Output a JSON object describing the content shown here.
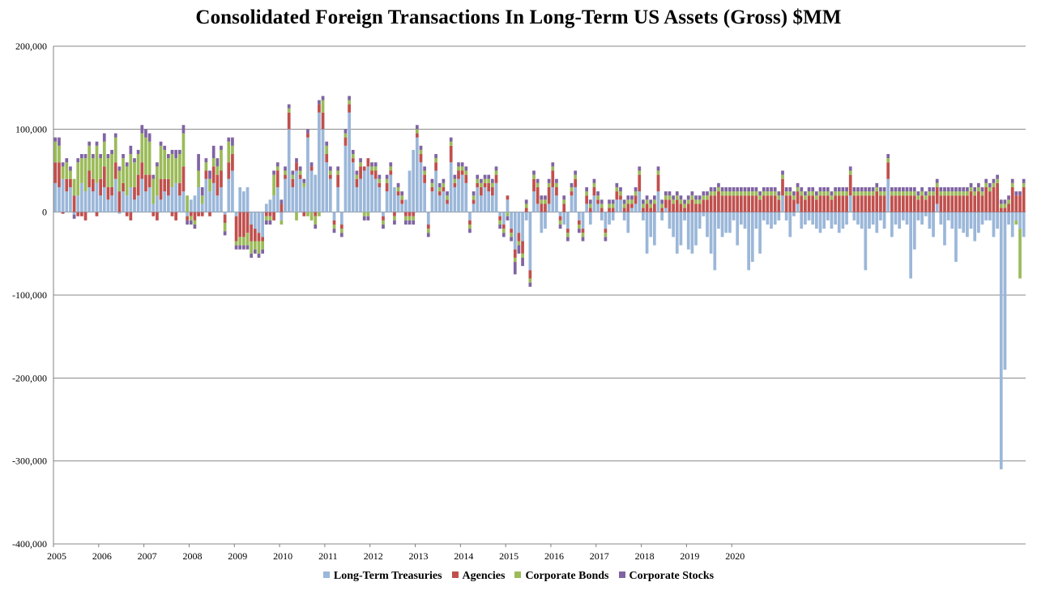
{
  "chart_data": {
    "type": "bar",
    "stacked": true,
    "title": "Consolidated Foreign Transactions In Long-Term US Assets (Gross) $MM",
    "ylim": [
      -400000,
      200000
    ],
    "yticks": [
      "200,000",
      "100,000",
      "0",
      "-100,000",
      "-200,000",
      "-300,000",
      "-400,000"
    ],
    "ytick_values": [
      200000,
      100000,
      0,
      -100000,
      -200000,
      -300000,
      -400000
    ],
    "xticks": [
      "2005",
      "2006",
      "2007",
      "2008",
      "2009",
      "2010",
      "2011",
      "2012",
      "2013",
      "2014",
      "2015",
      "2016",
      "2017",
      "2018",
      "2019",
      "2020"
    ],
    "grid": true,
    "legend_position": "bottom",
    "series": [
      {
        "name": "Long-Term Treasuries",
        "color": "#9bb7d9",
        "values": [
          35000,
          30000,
          40000,
          25000,
          30000,
          -3000,
          20000,
          35000,
          25000,
          30000,
          25000,
          35000,
          20000,
          30000,
          15000,
          20000,
          40000,
          -2000,
          25000,
          20000,
          30000,
          15000,
          20000,
          40000,
          25000,
          30000,
          10000,
          20000,
          15000,
          25000,
          20000,
          30000,
          35000,
          20000,
          25000,
          -5000,
          15000,
          20000,
          30000,
          10000,
          40000,
          25000,
          35000,
          20000,
          30000,
          -3000,
          40000,
          50000,
          -5000,
          30000,
          25000,
          30000,
          -15000,
          -20000,
          -25000,
          -30000,
          10000,
          15000,
          20000,
          30000,
          -10000,
          40000,
          100000,
          30000,
          50000,
          40000,
          30000,
          90000,
          50000,
          45000,
          120000,
          100000,
          60000,
          40000,
          -10000,
          30000,
          -15000,
          80000,
          120000,
          60000,
          30000,
          40000,
          50000,
          55000,
          45000,
          40000,
          30000,
          -5000,
          25000,
          45000,
          30000,
          20000,
          10000,
          15000,
          50000,
          75000,
          90000,
          60000,
          35000,
          -15000,
          25000,
          50000,
          20000,
          25000,
          10000,
          60000,
          30000,
          40000,
          45000,
          35000,
          -10000,
          10000,
          30000,
          20000,
          30000,
          25000,
          20000,
          35000,
          -5000,
          -15000,
          15000,
          -20000,
          -45000,
          -25000,
          -35000,
          -10000,
          -70000,
          25000,
          10000,
          -25000,
          -20000,
          10000,
          30000,
          20000,
          -5000,
          -15000,
          -20000,
          20000,
          30000,
          -10000,
          -20000,
          10000,
          -15000,
          20000,
          10000,
          -10000,
          -20000,
          -15000,
          -10000,
          15000,
          15000,
          -10000,
          -25000,
          5000,
          10000,
          25000,
          -10000,
          -50000,
          -30000,
          -40000,
          25000,
          -10000,
          5000,
          -20000,
          -30000,
          -50000,
          -40000,
          -10000,
          -45000,
          -50000,
          -40000,
          -20000,
          -5000,
          -30000,
          -50000,
          -70000,
          -20000,
          -30000,
          -25000,
          -25000,
          -10000,
          -40000,
          -15000,
          -20000,
          -70000,
          -60000,
          -20000,
          -50000,
          -10000,
          -15000,
          -20000,
          -15000,
          -10000,
          20000,
          -10000,
          -30000,
          -5000,
          10000,
          -20000,
          -15000,
          -10000,
          -15000,
          -20000,
          -25000,
          -20000,
          -10000,
          -20000,
          -15000,
          -25000,
          -20000,
          -15000,
          20000,
          -10000,
          -15000,
          -20000,
          -70000,
          -20000,
          -15000,
          -25000,
          -10000,
          -20000,
          40000,
          -30000,
          -15000,
          -20000,
          -10000,
          -15000,
          -80000,
          -45000,
          -10000,
          -15000,
          -5000,
          -20000,
          -30000,
          10000,
          -15000,
          -40000,
          -10000,
          -20000,
          -60000,
          -20000,
          -25000,
          -30000,
          -20000,
          -35000,
          -25000,
          -15000,
          -10000,
          -10000,
          -30000,
          -20000,
          -310000,
          -190000,
          -15000,
          -30000,
          -10000,
          -20000,
          -30000
        ]
      },
      {
        "name": "Agencies",
        "color": "#c0504d",
        "values": [
          25000,
          30000,
          -2000,
          15000,
          10000,
          20000,
          -5000,
          -5000,
          -10000,
          20000,
          15000,
          -5000,
          20000,
          25000,
          15000,
          10000,
          20000,
          25000,
          10000,
          -5000,
          -10000,
          15000,
          25000,
          20000,
          20000,
          15000,
          -5000,
          -10000,
          25000,
          15000,
          20000,
          -5000,
          -10000,
          15000,
          30000,
          -5000,
          -5000,
          -10000,
          -5000,
          -5000,
          10000,
          -5000,
          20000,
          25000,
          20000,
          -10000,
          20000,
          20000,
          -30000,
          -30000,
          -30000,
          -25000,
          -20000,
          -15000,
          -10000,
          -5000,
          -5000,
          -5000,
          -10000,
          20000,
          10000,
          5000,
          20000,
          10000,
          10000,
          5000,
          -5000,
          5000,
          5000,
          -5000,
          10000,
          20000,
          10000,
          5000,
          -5000,
          15000,
          -5000,
          10000,
          10000,
          5000,
          10000,
          15000,
          5000,
          10000,
          5000,
          10000,
          5000,
          -5000,
          10000,
          5000,
          -5000,
          5000,
          5000,
          -5000,
          -5000,
          -5000,
          5000,
          10000,
          10000,
          -5000,
          5000,
          10000,
          5000,
          5000,
          5000,
          20000,
          5000,
          10000,
          5000,
          10000,
          -5000,
          5000,
          5000,
          10000,
          5000,
          10000,
          10000,
          10000,
          -5000,
          -5000,
          5000,
          -5000,
          -10000,
          -10000,
          -15000,
          5000,
          -10000,
          15000,
          20000,
          10000,
          10000,
          20000,
          20000,
          10000,
          -5000,
          10000,
          -5000,
          5000,
          10000,
          -5000,
          -5000,
          10000,
          5000,
          10000,
          5000,
          5000,
          -5000,
          5000,
          5000,
          10000,
          5000,
          5000,
          10000,
          5000,
          10000,
          20000,
          5000,
          10000,
          5000,
          10000,
          20000,
          5000,
          10000,
          15000,
          10000,
          15000,
          10000,
          5000,
          10000,
          15000,
          10000,
          10000,
          15000,
          15000,
          20000,
          20000,
          25000,
          20000,
          20000,
          20000,
          20000,
          20000,
          20000,
          20000,
          20000,
          20000,
          20000,
          15000,
          20000,
          20000,
          20000,
          20000,
          15000,
          20000,
          20000,
          20000,
          15000,
          15000,
          20000,
          15000,
          20000,
          20000,
          15000,
          20000,
          20000,
          20000,
          15000,
          20000,
          20000,
          20000,
          20000,
          25000,
          20000,
          20000,
          20000,
          20000,
          20000,
          20000,
          25000,
          20000,
          20000,
          20000,
          20000,
          20000,
          20000,
          20000,
          20000,
          20000,
          20000,
          15000,
          20000,
          15000,
          20000,
          20000,
          20000,
          20000,
          20000,
          20000,
          20000,
          20000,
          20000,
          20000,
          20000,
          25000,
          20000,
          25000,
          20000,
          30000,
          25000,
          30000,
          35000,
          5000,
          5000,
          10000,
          30000,
          20000,
          20000,
          30000
        ]
      },
      {
        "name": "Corporate Bonds",
        "color": "#9bbb59",
        "values": [
          25000,
          20000,
          15000,
          20000,
          10000,
          20000,
          40000,
          30000,
          40000,
          30000,
          25000,
          45000,
          25000,
          30000,
          35000,
          40000,
          30000,
          25000,
          30000,
          35000,
          40000,
          30000,
          25000,
          35000,
          45000,
          40000,
          30000,
          35000,
          40000,
          35000,
          25000,
          40000,
          30000,
          35000,
          40000,
          20000,
          -5000,
          -5000,
          20000,
          10000,
          10000,
          15000,
          10000,
          10000,
          25000,
          -10000,
          25000,
          10000,
          -5000,
          -10000,
          -10000,
          -15000,
          -15000,
          -10000,
          -15000,
          -10000,
          -5000,
          -5000,
          25000,
          5000,
          -5000,
          5000,
          5000,
          5000,
          -10000,
          5000,
          5000,
          -5000,
          -10000,
          -10000,
          -5000,
          15000,
          10000,
          5000,
          -5000,
          5000,
          -5000,
          5000,
          5000,
          5000,
          5000,
          5000,
          -5000,
          -5000,
          5000,
          5000,
          5000,
          -5000,
          5000,
          5000,
          -5000,
          5000,
          5000,
          -5000,
          -5000,
          -5000,
          5000,
          5000,
          5000,
          -5000,
          5000,
          5000,
          5000,
          5000,
          5000,
          5000,
          5000,
          5000,
          5000,
          5000,
          -5000,
          5000,
          5000,
          5000,
          5000,
          5000,
          5000,
          5000,
          -5000,
          -5000,
          -5000,
          -5000,
          -5000,
          -5000,
          -5000,
          5000,
          -5000,
          5000,
          5000,
          5000,
          5000,
          5000,
          5000,
          5000,
          -5000,
          5000,
          -5000,
          5000,
          5000,
          -5000,
          -5000,
          5000,
          5000,
          5000,
          5000,
          5000,
          -5000,
          5000,
          5000,
          5000,
          5000,
          5000,
          5000,
          5000,
          5000,
          5000,
          5000,
          5000,
          5000,
          5000,
          5000,
          5000,
          5000,
          5000,
          5000,
          5000,
          5000,
          5000,
          5000,
          5000,
          5000,
          5000,
          5000,
          5000,
          5000,
          5000,
          5000,
          5000,
          5000,
          5000,
          5000,
          5000,
          5000,
          5000,
          5000,
          5000,
          5000,
          5000,
          5000,
          5000,
          5000,
          5000,
          5000,
          5000,
          5000,
          5000,
          5000,
          5000,
          5000,
          5000,
          5000,
          5000,
          5000,
          5000,
          5000,
          5000,
          5000,
          5000,
          5000,
          5000,
          5000,
          5000,
          5000,
          5000,
          5000,
          5000,
          5000,
          5000,
          5000,
          5000,
          5000,
          5000,
          5000,
          5000,
          5000,
          5000,
          5000,
          5000,
          5000,
          5000,
          5000,
          5000,
          5000,
          5000,
          5000,
          5000,
          5000,
          5000,
          5000,
          5000,
          5000,
          5000,
          5000,
          5000,
          5000,
          5000,
          5000,
          5000,
          5000,
          5000,
          5000,
          5000,
          5000,
          5000,
          5000,
          -5000,
          -60000,
          5000
        ]
      },
      {
        "name": "Corporate Stocks",
        "color": "#8064a2",
        "values": [
          5000,
          10000,
          5000,
          5000,
          5000,
          -5000,
          5000,
          5000,
          5000,
          5000,
          5000,
          5000,
          5000,
          10000,
          5000,
          5000,
          5000,
          5000,
          5000,
          5000,
          10000,
          5000,
          5000,
          10000,
          10000,
          10000,
          5000,
          5000,
          5000,
          5000,
          5000,
          5000,
          10000,
          5000,
          10000,
          -5000,
          -5000,
          -5000,
          20000,
          10000,
          5000,
          10000,
          15000,
          10000,
          5000,
          -5000,
          5000,
          10000,
          -5000,
          -5000,
          -5000,
          -5000,
          -5000,
          -5000,
          -5000,
          -5000,
          -5000,
          -5000,
          5000,
          5000,
          5000,
          5000,
          5000,
          5000,
          5000,
          5000,
          5000,
          5000,
          5000,
          -5000,
          5000,
          5000,
          5000,
          5000,
          -5000,
          5000,
          -5000,
          5000,
          5000,
          5000,
          5000,
          5000,
          -5000,
          -5000,
          5000,
          5000,
          5000,
          -5000,
          5000,
          5000,
          -5000,
          5000,
          5000,
          -5000,
          -5000,
          -5000,
          5000,
          5000,
          5000,
          -5000,
          5000,
          5000,
          5000,
          5000,
          5000,
          5000,
          5000,
          5000,
          5000,
          5000,
          -5000,
          5000,
          5000,
          5000,
          5000,
          5000,
          5000,
          5000,
          -5000,
          -5000,
          -5000,
          -5000,
          -15000,
          -10000,
          -10000,
          5000,
          -5000,
          5000,
          5000,
          5000,
          5000,
          5000,
          5000,
          5000,
          -5000,
          5000,
          -5000,
          5000,
          5000,
          -5000,
          -5000,
          5000,
          5000,
          5000,
          5000,
          5000,
          -5000,
          5000,
          5000,
          5000,
          5000,
          5000,
          5000,
          5000,
          5000,
          5000,
          5000,
          5000,
          5000,
          5000,
          5000,
          5000,
          5000,
          5000,
          5000,
          5000,
          5000,
          5000,
          5000,
          5000,
          5000,
          5000,
          5000,
          5000,
          5000,
          5000,
          5000,
          5000,
          5000,
          5000,
          5000,
          5000,
          5000,
          5000,
          5000,
          5000,
          5000,
          5000,
          5000,
          5000,
          5000,
          5000,
          5000,
          5000,
          5000,
          5000,
          5000,
          5000,
          5000,
          5000,
          5000,
          5000,
          5000,
          5000,
          5000,
          5000,
          5000,
          5000,
          5000,
          5000,
          5000,
          5000,
          5000,
          5000,
          5000,
          5000,
          5000,
          5000,
          5000,
          5000,
          5000,
          5000,
          5000,
          5000,
          5000,
          5000,
          5000,
          5000,
          5000,
          5000,
          5000,
          5000,
          5000,
          5000,
          5000,
          5000,
          5000,
          5000,
          5000,
          5000,
          5000,
          5000,
          5000,
          5000,
          5000,
          5000,
          5000,
          5000,
          5000,
          5000,
          5000,
          5000,
          5000,
          5000,
          5000,
          5000,
          5000,
          5000
        ]
      }
    ]
  }
}
